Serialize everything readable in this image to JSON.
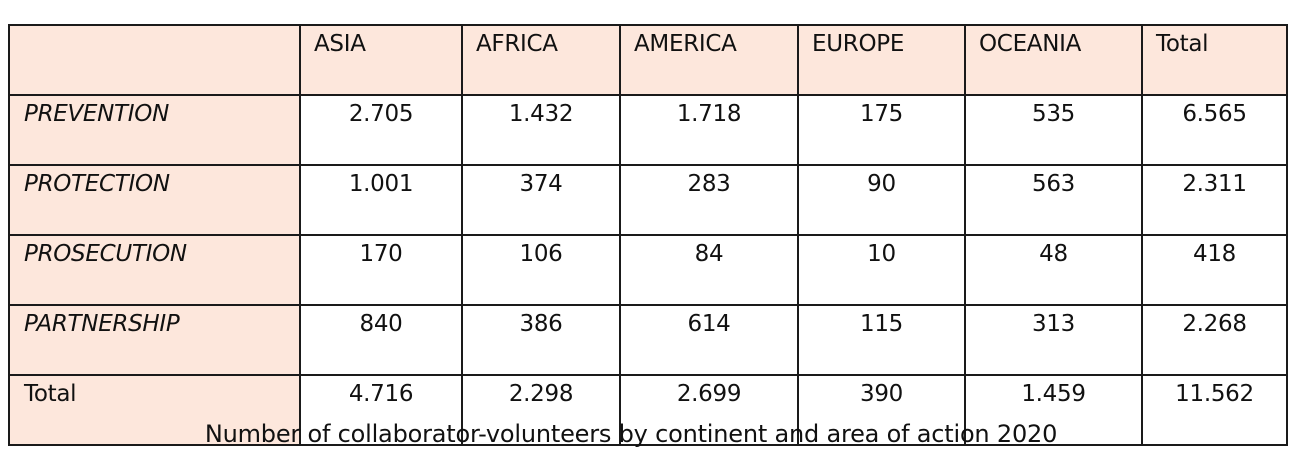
{
  "chart_data": {
    "type": "table",
    "title": "Number of collaborator-volunteers by continent and area of action 2020",
    "columns": [
      "ASIA",
      "AFRICA",
      "AMERICA",
      "EUROPE",
      "OCEANIA",
      "Total"
    ],
    "rows": [
      {
        "label": "PREVENTION",
        "values": [
          "2.705",
          "1.432",
          "1.718",
          "175",
          "535",
          "6.565"
        ]
      },
      {
        "label": "PROTECTION",
        "values": [
          "1.001",
          "374",
          "283",
          "90",
          "563",
          "2.311"
        ]
      },
      {
        "label": "PROSECUTION",
        "values": [
          "170",
          "106",
          "84",
          "10",
          "48",
          "418"
        ]
      },
      {
        "label": "PARTNERSHIP",
        "values": [
          "840",
          "386",
          "614",
          "115",
          "313",
          "2.268"
        ]
      },
      {
        "label": "Total",
        "values": [
          "4.716",
          "2.298",
          "2.699",
          "390",
          "1.459",
          "11.562"
        ]
      }
    ]
  },
  "colors": {
    "header_fill": "#fde7dc",
    "border": "#1a1a1a",
    "text": "#111111"
  }
}
